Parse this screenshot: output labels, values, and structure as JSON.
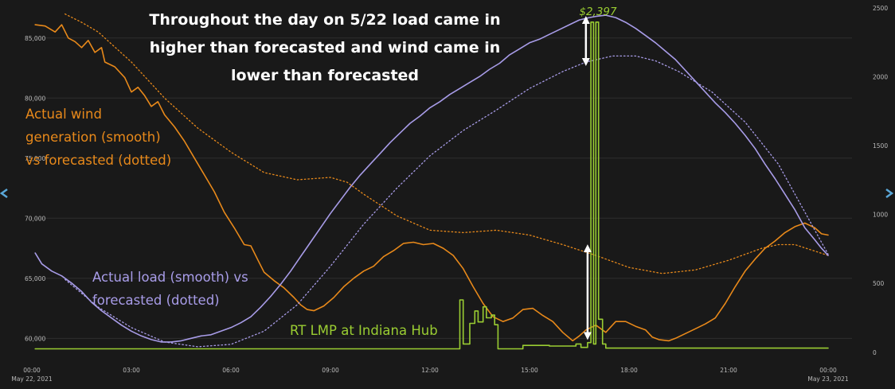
{
  "chart_data": {
    "type": "line",
    "title": [
      "Throughout the day on 5/22 load came in",
      "higher than forecasted and wind came in",
      "lower than forecasted"
    ],
    "x_axis": {
      "range_hours": [
        0,
        24
      ],
      "ticks": [
        {
          "hour": 0,
          "label": "00:00",
          "sublabel": "May 22, 2021"
        },
        {
          "hour": 3,
          "label": "03:00"
        },
        {
          "hour": 6,
          "label": "06:00"
        },
        {
          "hour": 9,
          "label": "09:00"
        },
        {
          "hour": 12,
          "label": "12:00"
        },
        {
          "hour": 15,
          "label": "15:00"
        },
        {
          "hour": 18,
          "label": "18:00"
        },
        {
          "hour": 21,
          "label": "21:00"
        },
        {
          "hour": 24,
          "label": "00:00",
          "sublabel": "May 23, 2021"
        }
      ]
    },
    "y_left": {
      "range": [
        58500,
        87500
      ],
      "ticks": [
        60000,
        65000,
        70000,
        75000,
        80000,
        85000
      ],
      "tick_labels": [
        "60,000",
        "65,000",
        "70,000",
        "75,000",
        "80,000",
        "85,000"
      ]
    },
    "y_right": {
      "range": [
        -30,
        2500
      ],
      "ticks": [
        0,
        500,
        1000,
        1500,
        2000,
        2500
      ],
      "tick_labels": [
        "0",
        "500",
        "1000",
        "1500",
        "2000",
        "2500"
      ]
    },
    "annotations": {
      "wind": [
        "Actual wind",
        "generation (smooth)",
        "vs forecasted (dotted)"
      ],
      "load": [
        "Actual load (smooth) vs",
        "forecasted (dotted)"
      ],
      "lmp": "RT LMP at Indiana Hub",
      "peak": "$2,397"
    },
    "colors": {
      "background": "#191919",
      "grid": "#2e2e2e",
      "wind": "#e8891a",
      "load": "#a89ce8",
      "lmp": "#9acd32",
      "arrow": "#ffffff",
      "title": "#ffffff"
    },
    "series": [
      {
        "name": "Actual wind generation",
        "axis": "left",
        "style": "solid",
        "points": [
          [
            0.1,
            86100
          ],
          [
            0.4,
            86000
          ],
          [
            0.7,
            85500
          ],
          [
            0.9,
            86100
          ],
          [
            1.1,
            85000
          ],
          [
            1.3,
            84700
          ],
          [
            1.5,
            84200
          ],
          [
            1.7,
            84800
          ],
          [
            1.9,
            83800
          ],
          [
            2.1,
            84200
          ],
          [
            2.2,
            83000
          ],
          [
            2.5,
            82600
          ],
          [
            2.8,
            81700
          ],
          [
            3.0,
            80500
          ],
          [
            3.2,
            80900
          ],
          [
            3.4,
            80200
          ],
          [
            3.6,
            79300
          ],
          [
            3.8,
            79700
          ],
          [
            4.0,
            78600
          ],
          [
            4.3,
            77600
          ],
          [
            4.6,
            76400
          ],
          [
            4.9,
            75000
          ],
          [
            5.2,
            73600
          ],
          [
            5.5,
            72200
          ],
          [
            5.8,
            70500
          ],
          [
            6.1,
            69200
          ],
          [
            6.4,
            67800
          ],
          [
            6.6,
            67700
          ],
          [
            6.8,
            66600
          ],
          [
            7.0,
            65500
          ],
          [
            7.3,
            64800
          ],
          [
            7.6,
            64200
          ],
          [
            7.9,
            63400
          ],
          [
            8.1,
            62800
          ],
          [
            8.3,
            62400
          ],
          [
            8.5,
            62300
          ],
          [
            8.8,
            62700
          ],
          [
            9.1,
            63400
          ],
          [
            9.4,
            64300
          ],
          [
            9.7,
            65000
          ],
          [
            10.0,
            65600
          ],
          [
            10.3,
            66000
          ],
          [
            10.6,
            66800
          ],
          [
            10.9,
            67300
          ],
          [
            11.2,
            67900
          ],
          [
            11.5,
            68000
          ],
          [
            11.8,
            67800
          ],
          [
            12.1,
            67900
          ],
          [
            12.4,
            67500
          ],
          [
            12.7,
            66900
          ],
          [
            13.0,
            65800
          ],
          [
            13.3,
            64300
          ],
          [
            13.6,
            62900
          ],
          [
            13.9,
            61800
          ],
          [
            14.2,
            61400
          ],
          [
            14.5,
            61700
          ],
          [
            14.8,
            62400
          ],
          [
            15.1,
            62500
          ],
          [
            15.4,
            61900
          ],
          [
            15.7,
            61400
          ],
          [
            16.0,
            60500
          ],
          [
            16.3,
            59800
          ],
          [
            16.5,
            60200
          ],
          [
            16.7,
            60700
          ],
          [
            17.0,
            61100
          ],
          [
            17.3,
            60500
          ],
          [
            17.6,
            61400
          ],
          [
            17.9,
            61400
          ],
          [
            18.2,
            61000
          ],
          [
            18.5,
            60700
          ],
          [
            18.7,
            60100
          ],
          [
            18.9,
            59900
          ],
          [
            19.2,
            59800
          ],
          [
            19.4,
            60000
          ],
          [
            19.7,
            60400
          ],
          [
            20.0,
            60800
          ],
          [
            20.3,
            61200
          ],
          [
            20.6,
            61700
          ],
          [
            20.9,
            62900
          ],
          [
            21.2,
            64300
          ],
          [
            21.5,
            65600
          ],
          [
            21.8,
            66600
          ],
          [
            22.1,
            67500
          ],
          [
            22.4,
            68100
          ],
          [
            22.7,
            68800
          ],
          [
            23.0,
            69300
          ],
          [
            23.3,
            69600
          ],
          [
            23.6,
            69200
          ],
          [
            23.8,
            68700
          ],
          [
            24.0,
            68600
          ]
        ]
      },
      {
        "name": "Forecasted wind generation",
        "axis": "left",
        "style": "dotted",
        "points": [
          [
            1.0,
            87000
          ],
          [
            1.5,
            86300
          ],
          [
            2.0,
            85500
          ],
          [
            3.0,
            83000
          ],
          [
            4.0,
            80000
          ],
          [
            5.0,
            77500
          ],
          [
            6.0,
            75500
          ],
          [
            7.0,
            73800
          ],
          [
            8.0,
            73200
          ],
          [
            9.0,
            73400
          ],
          [
            9.5,
            73000
          ],
          [
            10.0,
            72000
          ],
          [
            11.0,
            70200
          ],
          [
            12.0,
            69000
          ],
          [
            13.0,
            68800
          ],
          [
            14.0,
            69000
          ],
          [
            15.0,
            68600
          ],
          [
            16.0,
            67800
          ],
          [
            17.0,
            66900
          ],
          [
            18.0,
            65900
          ],
          [
            19.0,
            65400
          ],
          [
            20.0,
            65700
          ],
          [
            21.0,
            66500
          ],
          [
            22.0,
            67500
          ],
          [
            22.5,
            67800
          ],
          [
            23.0,
            67800
          ],
          [
            24.0,
            66900
          ]
        ]
      },
      {
        "name": "Actual load",
        "axis": "left",
        "style": "solid",
        "points": [
          [
            0.1,
            67100
          ],
          [
            0.3,
            66200
          ],
          [
            0.6,
            65600
          ],
          [
            0.9,
            65200
          ],
          [
            1.2,
            64600
          ],
          [
            1.5,
            63900
          ],
          [
            1.8,
            63000
          ],
          [
            2.1,
            62300
          ],
          [
            2.4,
            61700
          ],
          [
            2.7,
            61100
          ],
          [
            3.0,
            60600
          ],
          [
            3.3,
            60200
          ],
          [
            3.6,
            59900
          ],
          [
            3.9,
            59700
          ],
          [
            4.2,
            59700
          ],
          [
            4.5,
            59800
          ],
          [
            4.8,
            60000
          ],
          [
            5.1,
            60200
          ],
          [
            5.4,
            60300
          ],
          [
            5.7,
            60600
          ],
          [
            6.0,
            60900
          ],
          [
            6.3,
            61300
          ],
          [
            6.6,
            61800
          ],
          [
            6.9,
            62600
          ],
          [
            7.2,
            63500
          ],
          [
            7.5,
            64500
          ],
          [
            7.8,
            65600
          ],
          [
            8.1,
            66800
          ],
          [
            8.4,
            68000
          ],
          [
            8.7,
            69200
          ],
          [
            9.0,
            70400
          ],
          [
            9.3,
            71500
          ],
          [
            9.6,
            72600
          ],
          [
            9.9,
            73600
          ],
          [
            10.2,
            74500
          ],
          [
            10.5,
            75400
          ],
          [
            10.8,
            76300
          ],
          [
            11.1,
            77100
          ],
          [
            11.4,
            77900
          ],
          [
            11.7,
            78500
          ],
          [
            12.0,
            79200
          ],
          [
            12.3,
            79700
          ],
          [
            12.6,
            80300
          ],
          [
            12.9,
            80800
          ],
          [
            13.2,
            81300
          ],
          [
            13.5,
            81800
          ],
          [
            13.8,
            82400
          ],
          [
            14.1,
            82900
          ],
          [
            14.4,
            83600
          ],
          [
            14.7,
            84100
          ],
          [
            15.0,
            84600
          ],
          [
            15.3,
            84900
          ],
          [
            15.6,
            85300
          ],
          [
            15.9,
            85700
          ],
          [
            16.2,
            86100
          ],
          [
            16.5,
            86500
          ],
          [
            16.8,
            86700
          ],
          [
            17.0,
            86800
          ],
          [
            17.3,
            86900
          ],
          [
            17.6,
            86700
          ],
          [
            17.9,
            86300
          ],
          [
            18.2,
            85800
          ],
          [
            18.5,
            85200
          ],
          [
            18.8,
            84600
          ],
          [
            19.1,
            83900
          ],
          [
            19.4,
            83200
          ],
          [
            19.7,
            82300
          ],
          [
            20.0,
            81400
          ],
          [
            20.3,
            80500
          ],
          [
            20.6,
            79600
          ],
          [
            20.9,
            78800
          ],
          [
            21.2,
            77900
          ],
          [
            21.5,
            76900
          ],
          [
            21.8,
            75800
          ],
          [
            22.1,
            74500
          ],
          [
            22.4,
            73300
          ],
          [
            22.7,
            72000
          ],
          [
            23.0,
            70700
          ],
          [
            23.3,
            69200
          ],
          [
            23.6,
            68200
          ],
          [
            23.8,
            67500
          ],
          [
            24.0,
            66900
          ]
        ]
      },
      {
        "name": "Forecasted load",
        "axis": "left",
        "style": "dotted",
        "points": [
          [
            1.0,
            64900
          ],
          [
            2.0,
            62600
          ],
          [
            3.0,
            60900
          ],
          [
            4.0,
            59700
          ],
          [
            5.0,
            59300
          ],
          [
            6.0,
            59500
          ],
          [
            7.0,
            60600
          ],
          [
            8.0,
            62800
          ],
          [
            9.0,
            66000
          ],
          [
            10.0,
            69500
          ],
          [
            11.0,
            72500
          ],
          [
            12.0,
            75200
          ],
          [
            13.0,
            77300
          ],
          [
            14.0,
            79000
          ],
          [
            15.0,
            80800
          ],
          [
            16.0,
            82200
          ],
          [
            16.7,
            83000
          ],
          [
            17.5,
            83500
          ],
          [
            18.2,
            83500
          ],
          [
            18.8,
            83100
          ],
          [
            19.5,
            82200
          ],
          [
            20.5,
            80500
          ],
          [
            21.5,
            78000
          ],
          [
            22.5,
            74500
          ],
          [
            23.5,
            69500
          ],
          [
            24.0,
            67000
          ]
        ]
      },
      {
        "name": "RT LMP at Indiana Hub",
        "axis": "right",
        "style": "step",
        "points": [
          [
            0.1,
            25
          ],
          [
            12.9,
            25
          ],
          [
            12.9,
            380
          ],
          [
            13.0,
            380
          ],
          [
            13.0,
            60
          ],
          [
            13.2,
            60
          ],
          [
            13.2,
            210
          ],
          [
            13.35,
            210
          ],
          [
            13.35,
            300
          ],
          [
            13.45,
            300
          ],
          [
            13.45,
            220
          ],
          [
            13.6,
            220
          ],
          [
            13.6,
            330
          ],
          [
            13.7,
            330
          ],
          [
            13.7,
            250
          ],
          [
            13.85,
            250
          ],
          [
            13.85,
            270
          ],
          [
            13.95,
            270
          ],
          [
            13.95,
            200
          ],
          [
            14.05,
            200
          ],
          [
            14.05,
            25
          ],
          [
            14.8,
            25
          ],
          [
            14.8,
            50
          ],
          [
            15.6,
            50
          ],
          [
            15.6,
            45
          ],
          [
            16.4,
            45
          ],
          [
            16.4,
            60
          ],
          [
            16.55,
            60
          ],
          [
            16.55,
            35
          ],
          [
            16.75,
            35
          ],
          [
            16.75,
            70
          ],
          [
            16.85,
            70
          ],
          [
            16.85,
            2397
          ],
          [
            16.93,
            2397
          ],
          [
            16.93,
            60
          ],
          [
            17.0,
            60
          ],
          [
            17.0,
            2397
          ],
          [
            17.08,
            2397
          ],
          [
            17.08,
            240
          ],
          [
            17.2,
            240
          ],
          [
            17.2,
            60
          ],
          [
            17.3,
            60
          ],
          [
            17.3,
            30
          ],
          [
            24.0,
            30
          ]
        ]
      }
    ],
    "arrows": [
      {
        "hour": 16.7,
        "axis": "left",
        "from": 86500,
        "to": 83000
      },
      {
        "hour": 16.75,
        "axis": "left",
        "from": 67500,
        "to": 60200
      }
    ]
  }
}
